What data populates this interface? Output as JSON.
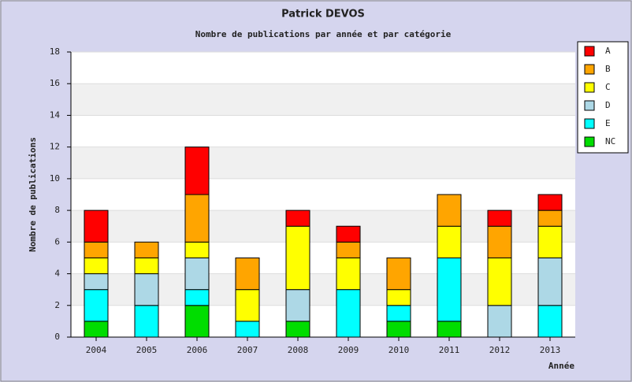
{
  "chart_data": {
    "type": "stacked_bar",
    "title": "Patrick DEVOS",
    "subtitle": "Nombre de publications par année et par catégorie",
    "x_label": "Année",
    "y_label": "Nombre de publications",
    "categories": [
      "2004",
      "2005",
      "2006",
      "2007",
      "2008",
      "2009",
      "2010",
      "2011",
      "2012",
      "2013"
    ],
    "series": [
      {
        "name": "A",
        "color": "#ff0000",
        "values": [
          2,
          0,
          3,
          0,
          1,
          1,
          0,
          0,
          1,
          1
        ]
      },
      {
        "name": "B",
        "color": "#ffa500",
        "values": [
          1,
          1,
          3,
          2,
          0,
          1,
          2,
          2,
          2,
          1
        ]
      },
      {
        "name": "C",
        "color": "#ffff00",
        "values": [
          1,
          1,
          1,
          2,
          4,
          2,
          1,
          2,
          3,
          2
        ]
      },
      {
        "name": "D",
        "color": "#add8e6",
        "values": [
          1,
          2,
          2,
          0,
          2,
          0,
          0,
          0,
          2,
          3
        ]
      },
      {
        "name": "E",
        "color": "#00ffff",
        "values": [
          2,
          2,
          1,
          1,
          0,
          3,
          1,
          4,
          0,
          2
        ]
      },
      {
        "name": "NC",
        "color": "#00dd00",
        "values": [
          1,
          0,
          2,
          0,
          1,
          0,
          1,
          1,
          0,
          0
        ]
      }
    ],
    "ylim": [
      0,
      18
    ],
    "yticks": [
      0,
      2,
      4,
      6,
      8,
      10,
      12,
      14,
      16,
      18
    ],
    "grid": true,
    "legend": "right"
  }
}
